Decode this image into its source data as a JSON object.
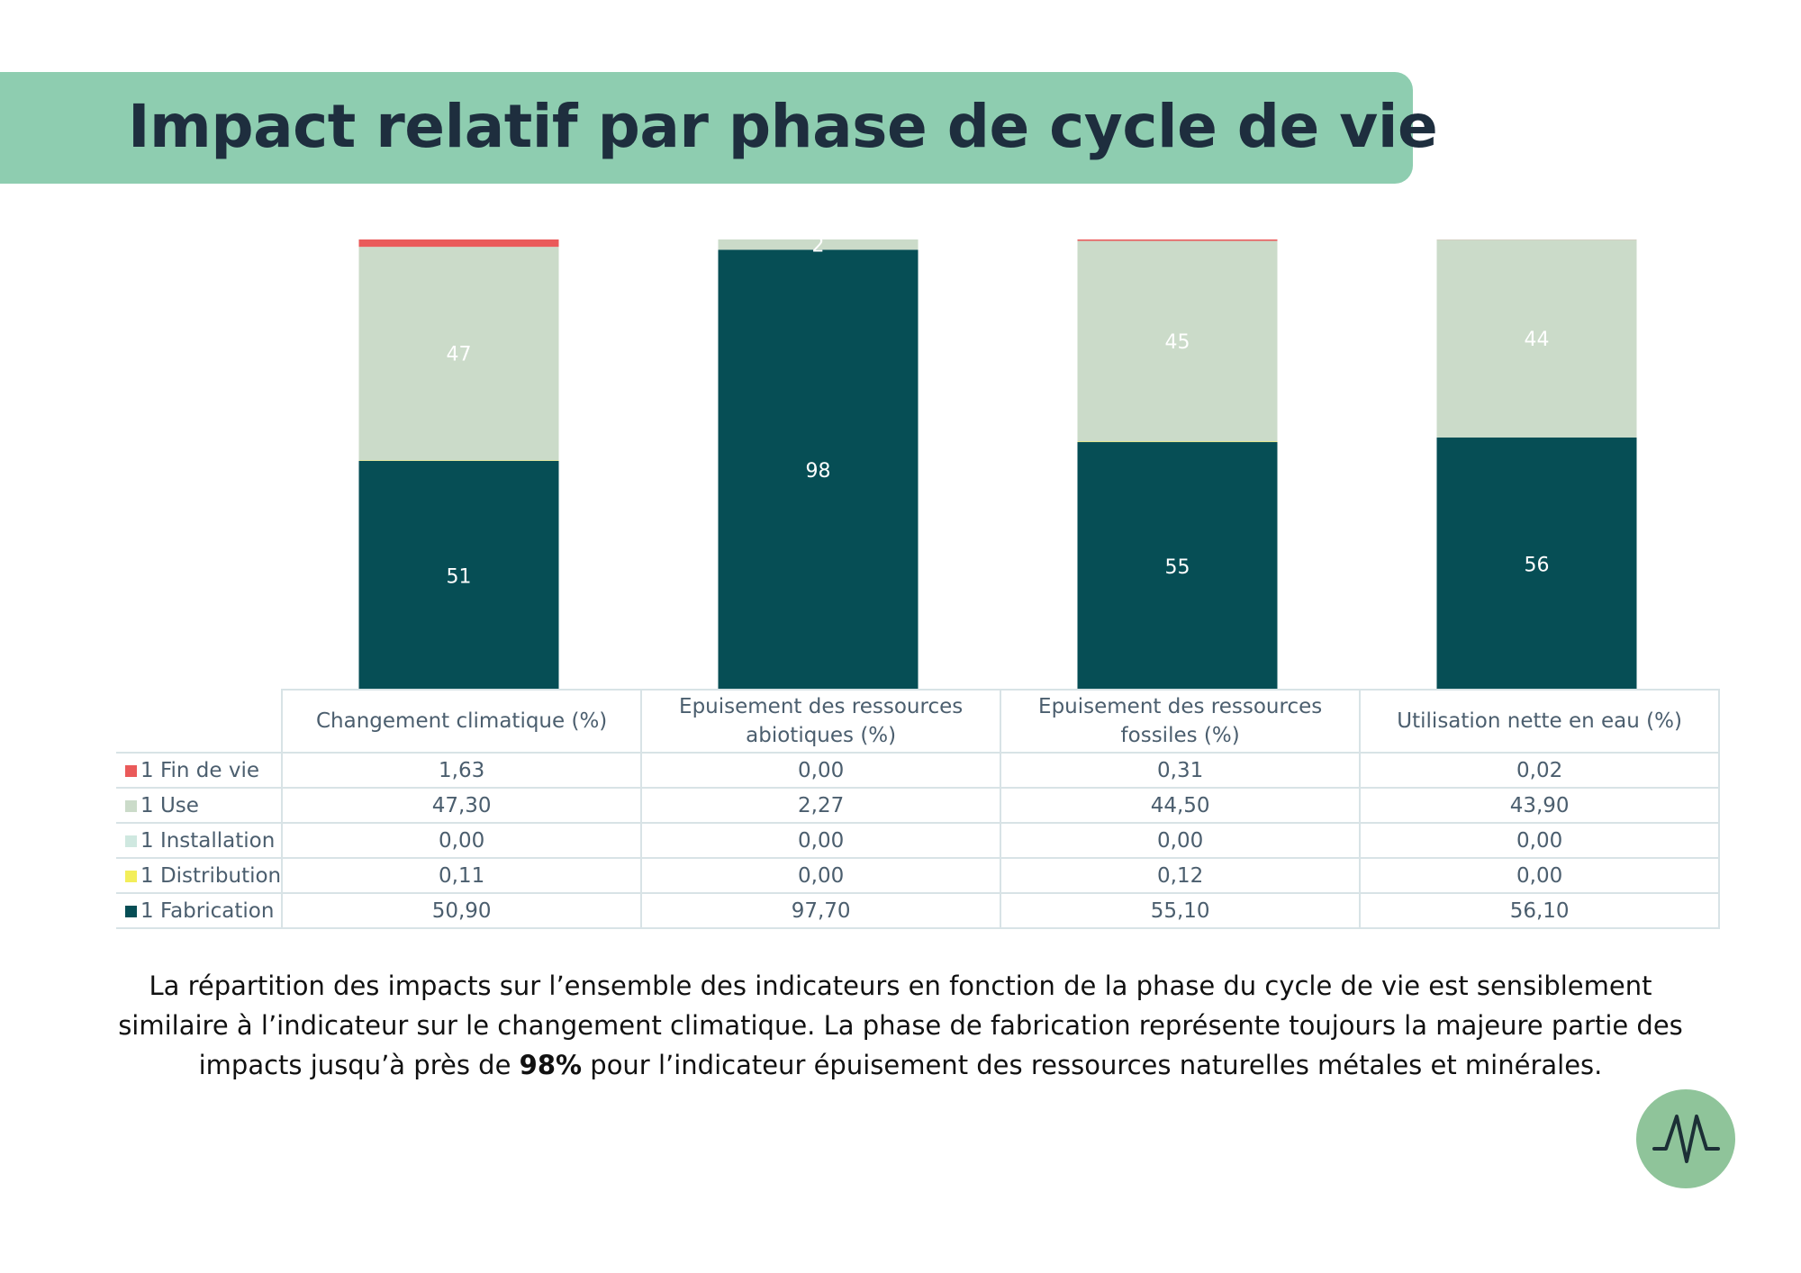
{
  "page": {
    "title": "Impact relatif par phase de cycle de vie",
    "caption_part1": "La répartition des impacts sur l’ensemble des indicateurs en fonction de la phase du cycle de vie est sensiblement similaire à l’indicateur sur le changement climatique. La phase de fabrication représente toujours la majeure partie des impacts jusqu’à près de ",
    "caption_bold": "98%",
    "caption_part2": " pour l’indicateur épuisement des ressources naturelles métales et minérales.",
    "logo_icon": "logo-mark-icon",
    "colors": {
      "banner": "#8ecdb0",
      "title": "#1e2e3e",
      "logo": "#8fc49a"
    }
  },
  "chart_data": {
    "type": "bar",
    "stacked": true,
    "categories": [
      "Changement climatique (%)",
      "Epuisement des ressources abiotiques (%)",
      "Epuisement des ressources fossiles (%)",
      "Utilisation nette en eau (%)"
    ],
    "series": [
      {
        "name": "1 Fabrication",
        "color": "#064e55",
        "values": [
          50.9,
          97.7,
          55.1,
          56.1
        ],
        "labels": [
          "51",
          "98",
          "55",
          "56"
        ]
      },
      {
        "name": "1 Distribution",
        "color": "#f3ee5a",
        "values": [
          0.11,
          0.0,
          0.12,
          0.0
        ],
        "labels": [
          "",
          "",
          "",
          ""
        ]
      },
      {
        "name": "1 Installation",
        "color": "#cfe8e0",
        "values": [
          0.0,
          0.0,
          0.0,
          0.0
        ],
        "labels": [
          "",
          "",
          "",
          ""
        ]
      },
      {
        "name": "1 Use",
        "color": "#cbdbc9",
        "values": [
          47.3,
          2.27,
          44.5,
          43.9
        ],
        "labels": [
          "47",
          "2",
          "45",
          "44"
        ]
      },
      {
        "name": "1 Fin de vie",
        "color": "#ea5a5a",
        "values": [
          1.63,
          0.0,
          0.31,
          0.02
        ],
        "labels": [
          "",
          "",
          "",
          ""
        ]
      }
    ],
    "table": {
      "row_order": [
        "1 Fin de vie",
        "1 Use",
        "1 Installation",
        "1 Distribution",
        "1 Fabrication"
      ],
      "rows": [
        {
          "name": "1 Fin de vie",
          "color": "#ea5a5a",
          "cells": [
            "1,63",
            "0,00",
            "0,31",
            "0,02"
          ]
        },
        {
          "name": "1 Use",
          "color": "#cbdbc9",
          "cells": [
            "47,30",
            "2,27",
            "44,50",
            "43,90"
          ]
        },
        {
          "name": "1 Installation",
          "color": "#cfe8e0",
          "cells": [
            "0,00",
            "0,00",
            "0,00",
            "0,00"
          ]
        },
        {
          "name": "1 Distribution",
          "color": "#f3ee5a",
          "cells": [
            "0,11",
            "0,00",
            "0,12",
            "0,00"
          ]
        },
        {
          "name": "1 Fabrication",
          "color": "#064e55",
          "cells": [
            "50,90",
            "97,70",
            "55,10",
            "56,10"
          ]
        }
      ]
    },
    "ylim": [
      0,
      100
    ],
    "grid": false,
    "legend": "table-left"
  }
}
